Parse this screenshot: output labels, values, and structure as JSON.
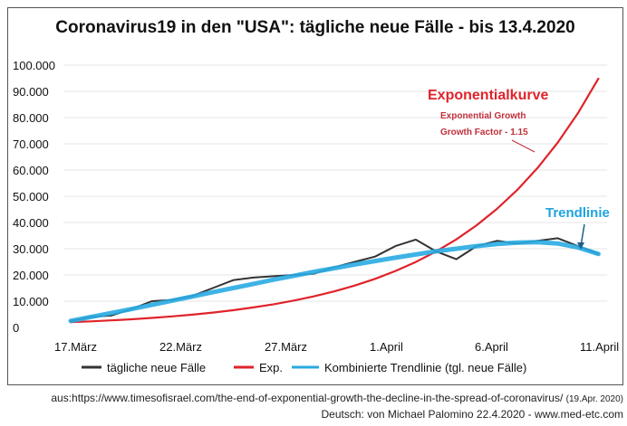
{
  "chart_data": {
    "type": "line",
    "title": "Coronavirus19 in den \"USA\": tägliche neue Fälle - bis 13.4.2020",
    "x_tick_labels": [
      "17.März",
      "22.März",
      "27.März",
      "1.April",
      "6.April",
      "11.April"
    ],
    "y_tick_labels": [
      "0",
      "10.000",
      "20.000",
      "30.000",
      "40.000",
      "50.000",
      "60.000",
      "70.000",
      "80.000",
      "90.000",
      "100.000"
    ],
    "ylim": [
      0,
      100000
    ],
    "grid": true,
    "legend_position": "bottom",
    "x_days": [
      "17.3",
      "18.3",
      "19.3",
      "20.3",
      "21.3",
      "22.3",
      "23.3",
      "24.3",
      "25.3",
      "26.3",
      "27.3",
      "28.3",
      "29.3",
      "30.3",
      "31.3",
      "1.4",
      "2.4",
      "3.4",
      "4.4",
      "5.4",
      "6.4",
      "7.4",
      "8.4",
      "9.4",
      "10.4",
      "11.4",
      "12.4"
    ],
    "series": [
      {
        "name": "tägliche neue Fälle",
        "color": "#333333",
        "values": [
          2500,
          4000,
          4500,
          7000,
          10000,
          10500,
          12000,
          15000,
          18000,
          19000,
          19500,
          20000,
          20500,
          23000,
          25000,
          27000,
          31000,
          33500,
          29000,
          26000,
          31000,
          33000,
          32000,
          33000,
          34000,
          31000,
          28000
        ]
      },
      {
        "name": "Exp.",
        "color": "#e0232b",
        "values": [
          2000,
          2320,
          2690,
          3120,
          3620,
          4200,
          4870,
          5650,
          6560,
          7610,
          8820,
          10240,
          11870,
          13770,
          15980,
          18530,
          21500,
          24940,
          28930,
          33560,
          38930,
          45160,
          52380,
          60760,
          70490,
          81770,
          94850
        ]
      },
      {
        "name": "Kombinierte Trendlinie (tgl. neue Fälle)",
        "color": "#29abe2",
        "values": [
          2500,
          4000,
          5500,
          7000,
          8600,
          10200,
          11800,
          13400,
          15000,
          16600,
          18200,
          19700,
          21200,
          22600,
          24000,
          25300,
          26600,
          27800,
          29000,
          30000,
          31000,
          31800,
          32300,
          32500,
          32000,
          30500,
          28000
        ]
      }
    ],
    "annotations": {
      "exp_label": "Exponentialkurve",
      "exp_note1": "Exponential Growth",
      "exp_note2": "Growth Factor - 1.15",
      "trend_label": "Trendlinie"
    }
  },
  "footer": {
    "source": "aus:https://www.timesofisrael.com/the-end-of-exponential-growth-the-decline-in-the-spread-of-coronavirus/",
    "source_date": "(19.Apr. 2020)",
    "credit": "Deutsch: von Michael Palomino 22.4.2020 - www.med-etc.com"
  }
}
